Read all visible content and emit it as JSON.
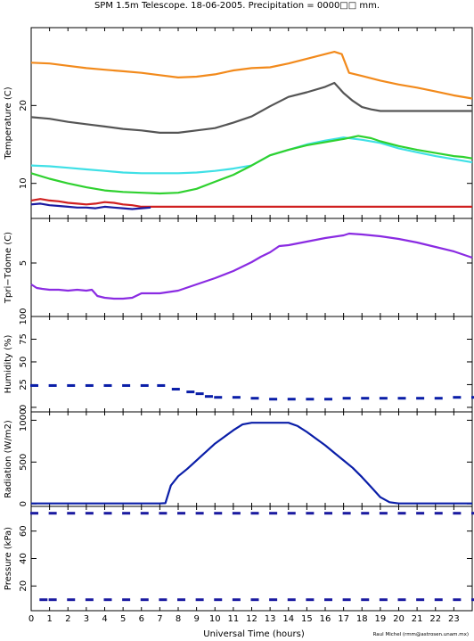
{
  "title": "SPM 1.5m Telescope. 18-06-2005. Precipitation = 0000□□ mm.",
  "xlabel": "Universal Time (hours)",
  "credit": "Raul Michel (rmm@astrosen.unam.mx)",
  "colors": {
    "orange": "#f28a1c",
    "gray": "#555555",
    "cyan": "#3fe0e6",
    "green": "#2fd12f",
    "red": "#d02020",
    "navy": "#1a1aa0",
    "purple": "#8a2be2",
    "blue": "#0a1ea8"
  },
  "chart_data": [
    {
      "type": "line",
      "ylabel": "Temperature (C)",
      "xlim": [
        0,
        24
      ],
      "ylim": [
        5.5,
        30
      ],
      "yticks": [
        10,
        20
      ],
      "series": [
        {
          "color": "orange",
          "x": [
            0,
            1,
            2,
            3,
            4,
            5,
            6,
            7,
            8,
            9,
            10,
            11,
            12,
            13,
            14,
            15,
            16,
            16.5,
            16.9,
            17.3,
            18,
            19,
            20,
            21,
            22,
            23,
            24
          ],
          "y": [
            25.5,
            25.4,
            25.1,
            24.8,
            24.6,
            24.4,
            24.2,
            23.9,
            23.6,
            23.7,
            24.0,
            24.5,
            24.8,
            24.9,
            25.4,
            26.0,
            26.6,
            26.9,
            26.6,
            24.2,
            23.8,
            23.2,
            22.7,
            22.3,
            21.8,
            21.3,
            20.9
          ]
        },
        {
          "color": "gray",
          "x": [
            0,
            1,
            2,
            3,
            4,
            5,
            6,
            7,
            8,
            9,
            10,
            11,
            12,
            13,
            14,
            15,
            16,
            16.5,
            17,
            17.5,
            18,
            18.5,
            19,
            20,
            21,
            22,
            23,
            24
          ],
          "y": [
            18.5,
            18.3,
            17.9,
            17.6,
            17.3,
            17.0,
            16.8,
            16.5,
            16.5,
            16.8,
            17.1,
            17.8,
            18.6,
            19.9,
            21.1,
            21.7,
            22.4,
            22.9,
            21.6,
            20.6,
            19.8,
            19.5,
            19.3,
            19.3,
            19.3,
            19.3,
            19.3,
            19.3
          ]
        },
        {
          "color": "cyan",
          "x": [
            0,
            1,
            2,
            3,
            4,
            5,
            6,
            7,
            8,
            9,
            10,
            11,
            12,
            13,
            14,
            15,
            16,
            17,
            18,
            19,
            20,
            21,
            22,
            23,
            24
          ],
          "y": [
            12.3,
            12.2,
            12.0,
            11.8,
            11.6,
            11.4,
            11.3,
            11.3,
            11.3,
            11.4,
            11.6,
            11.9,
            12.3,
            13.6,
            14.3,
            15.0,
            15.5,
            15.9,
            15.6,
            15.2,
            14.5,
            14.0,
            13.5,
            13.1,
            12.7
          ]
        },
        {
          "color": "green",
          "x": [
            0,
            1,
            2,
            3,
            4,
            5,
            6,
            7,
            8,
            9,
            10,
            11,
            12,
            13,
            14,
            15,
            16,
            17,
            17.8,
            18.5,
            19,
            20,
            21,
            22,
            23,
            23.5,
            24
          ],
          "y": [
            11.3,
            10.6,
            10.0,
            9.5,
            9.1,
            8.9,
            8.8,
            8.7,
            8.8,
            9.3,
            10.2,
            11.1,
            12.3,
            13.6,
            14.3,
            14.9,
            15.3,
            15.7,
            16.1,
            15.8,
            15.4,
            14.8,
            14.3,
            13.9,
            13.5,
            13.4,
            13.2
          ]
        },
        {
          "color": "red",
          "x": [
            0,
            0.5,
            1,
            1.5,
            2,
            2.5,
            3,
            3.5,
            4,
            4.5,
            5,
            5.5,
            6,
            7,
            8,
            9,
            10,
            11,
            12,
            13,
            14,
            15,
            16,
            17,
            18,
            19,
            20,
            21,
            22,
            23,
            24
          ],
          "y": [
            7.8,
            8.0,
            7.8,
            7.7,
            7.5,
            7.4,
            7.3,
            7.4,
            7.6,
            7.5,
            7.3,
            7.2,
            7.0,
            7.0,
            7.0,
            7.0,
            7.0,
            7.0,
            7.0,
            7.0,
            7.0,
            7.0,
            7.0,
            7.0,
            7.0,
            7.0,
            7.0,
            7.0,
            7.0,
            7.0,
            7.0
          ]
        },
        {
          "color": "navy",
          "x": [
            0,
            0.5,
            1,
            1.5,
            2,
            2.5,
            3,
            3.5,
            4,
            4.5,
            5,
            5.5,
            6,
            6.5
          ],
          "y": [
            7.3,
            7.4,
            7.2,
            7.1,
            7.0,
            6.9,
            6.9,
            6.8,
            7.0,
            6.9,
            6.8,
            6.7,
            6.8,
            6.9
          ]
        }
      ]
    },
    {
      "type": "line",
      "ylabel": "Tpri−Tdome (C)",
      "xlim": [
        0,
        24
      ],
      "ylim": [
        -1,
        10
      ],
      "yticks": [
        5
      ],
      "series": [
        {
          "color": "purple",
          "x": [
            0,
            0.3,
            0.6,
            1,
            1.5,
            2,
            2.5,
            3,
            3.3,
            3.6,
            4,
            4.5,
            5,
            5.5,
            6,
            7,
            8,
            9,
            10,
            11,
            12,
            12.5,
            13,
            13.5,
            14,
            15,
            16,
            17,
            17.3,
            18,
            19,
            20,
            21,
            22,
            23,
            24
          ],
          "y": [
            2.6,
            2.2,
            2.1,
            2.0,
            2.0,
            1.9,
            2.0,
            1.9,
            2.0,
            1.3,
            1.1,
            1.0,
            1.0,
            1.1,
            1.6,
            1.6,
            1.9,
            2.6,
            3.3,
            4.1,
            5.1,
            5.7,
            6.2,
            6.9,
            7.0,
            7.4,
            7.8,
            8.1,
            8.3,
            8.2,
            8.0,
            7.7,
            7.3,
            6.8,
            6.3,
            5.6
          ]
        }
      ]
    },
    {
      "type": "scatter",
      "ylabel": "Humidity (%)",
      "xlim": [
        0,
        24
      ],
      "ylim": [
        -5,
        100
      ],
      "yticks": [
        0,
        25,
        50,
        75,
        100
      ],
      "series": [
        {
          "color": "blue",
          "x": [
            0,
            1,
            2,
            3,
            4,
            5,
            6,
            6.9,
            7.7,
            8.5,
            9,
            9.5,
            10,
            11,
            12,
            13,
            14,
            15,
            16,
            17,
            18,
            19,
            20,
            21,
            22,
            23,
            24
          ],
          "y": [
            24,
            24,
            24,
            24,
            24,
            24,
            24,
            24,
            20,
            17,
            15,
            12,
            11,
            11,
            10,
            9,
            9,
            9,
            9,
            10,
            10,
            10,
            10,
            10,
            10,
            11,
            11
          ]
        }
      ]
    },
    {
      "type": "line",
      "ylabel": "Radiation (W/m2)",
      "xlim": [
        0,
        24
      ],
      "ylim": [
        -30,
        1100
      ],
      "yticks": [
        0,
        500,
        1000
      ],
      "series": [
        {
          "color": "blue",
          "x": [
            0,
            7,
            7.3,
            7.6,
            8,
            8.5,
            9,
            9.5,
            10,
            10.5,
            11,
            11.5,
            12,
            13,
            14,
            14.5,
            15,
            15.5,
            16,
            16.5,
            17,
            17.5,
            18,
            18.5,
            19,
            19.5,
            20,
            21,
            22,
            23,
            24
          ],
          "y": [
            5,
            5,
            8,
            220,
            330,
            420,
            520,
            620,
            720,
            800,
            880,
            950,
            970,
            970,
            970,
            930,
            860,
            780,
            700,
            610,
            520,
            430,
            320,
            200,
            80,
            20,
            5,
            5,
            5,
            5,
            5
          ]
        }
      ]
    },
    {
      "type": "scatter",
      "ylabel": "Pressure (kPa)",
      "xlim": [
        0,
        24
      ],
      "ylim": [
        2,
        78
      ],
      "yticks": [
        20,
        40,
        60
      ],
      "series": [
        {
          "color": "navy",
          "x": [
            0,
            1,
            2,
            3,
            4,
            5,
            6,
            7,
            8,
            9,
            10,
            11,
            12,
            13,
            14,
            15,
            16,
            17,
            18,
            19,
            20,
            21,
            22,
            23,
            24
          ],
          "y": [
            73,
            73,
            73,
            73,
            73,
            73,
            73,
            73,
            73,
            73,
            73,
            73,
            73,
            73,
            73,
            73,
            73,
            73,
            73,
            73,
            73,
            73,
            73,
            73,
            73
          ]
        },
        {
          "color": "navy",
          "x": [
            0.5,
            1,
            2,
            3,
            4,
            5,
            6,
            7,
            8,
            9,
            10,
            11,
            12,
            13,
            14,
            15,
            16,
            17,
            18,
            19,
            20,
            21,
            22,
            23,
            24
          ],
          "y": [
            10,
            10,
            10,
            10,
            10,
            10,
            10,
            10,
            10,
            10,
            10,
            10,
            10,
            10,
            10,
            10,
            10,
            10,
            10,
            10,
            10,
            10,
            10,
            10,
            10
          ]
        }
      ]
    }
  ],
  "xticks": [
    "0",
    "1",
    "2",
    "3",
    "4",
    "5",
    "6",
    "7",
    "8",
    "9",
    "10",
    "11",
    "12",
    "13",
    "14",
    "15",
    "16",
    "17",
    "18",
    "19",
    "20",
    "21",
    "22",
    "23"
  ]
}
